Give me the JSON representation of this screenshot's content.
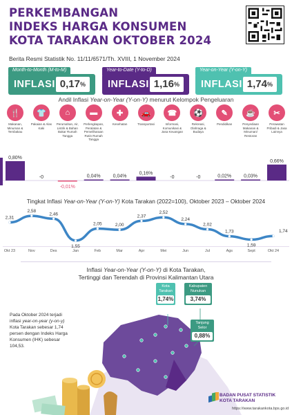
{
  "header": {
    "title_line1": "PERKEMBANGAN",
    "title_line2": "INDEKS HARGA KONSUMEN",
    "title_line3": "KOTA TARAKAN OKTOBER 2024",
    "subtitle": "Berita Resmi Statistik No. 11/11/6571/Th. XVIII, 1 November 2024"
  },
  "inflation_boxes": [
    {
      "label": "Month-to-Month (M-to-M)",
      "word": "INFLASI",
      "value": "0,17",
      "unit": "%",
      "color": "#3c9a82",
      "label_bg": "#3c9a82"
    },
    {
      "label": "Year-to-Date (Y-to-D)",
      "word": "INFLASI",
      "value": "1,16",
      "unit": "%",
      "color": "#5a2a86",
      "label_bg": "#5a2a86"
    },
    {
      "label": "Year-on-Year (Y-on-Y)",
      "word": "INFLASI",
      "value": "1,74",
      "unit": "%",
      "color": "#4fc1b0",
      "label_bg": "#4fc1b0"
    }
  ],
  "andil_title_prefix": "Andil Inflasi ",
  "andil_title_em": "Year-on-Year (Y-on-Y)",
  "andil_title_suffix": " menurut Kelompok Pengeluaran",
  "groups": [
    {
      "name": "Makanan, Minuman & Tembakau",
      "icon": "food-icon",
      "glyph": "🍴"
    },
    {
      "name": "Pakaian & Alas Kaki",
      "icon": "clothing-icon",
      "glyph": "👕"
    },
    {
      "name": "Perumahan, Air, Listrik & Bahan Bakar Rumah Tangga",
      "icon": "house-icon",
      "glyph": "⌂"
    },
    {
      "name": "Perlengkapan, Peralatan & Pemeliharaan Rutin Rumah Tangga",
      "icon": "sofa-icon",
      "glyph": "▬"
    },
    {
      "name": "Kesehatan",
      "icon": "health-icon",
      "glyph": "✚"
    },
    {
      "name": "Transportasi",
      "icon": "car-icon",
      "glyph": "🚗"
    },
    {
      "name": "Informasi, Komunikasi & Jasa Keuangan",
      "icon": "phone-icon",
      "glyph": "☎"
    },
    {
      "name": "Rekreasi, Olahraga & Budaya",
      "icon": "recreation-icon",
      "glyph": "⚽"
    },
    {
      "name": "Pendidikan",
      "icon": "education-icon",
      "glyph": "✎"
    },
    {
      "name": "Penyediaan Makanan & Minuman/ Restoran",
      "icon": "restaurant-icon",
      "glyph": "☕"
    },
    {
      "name": "Perawatan Pribadi & Jasa Lainnya",
      "icon": "personal-care-icon",
      "glyph": "✂"
    }
  ],
  "line_title_prefix": "Tingkat Inflasi ",
  "line_title_em": "Year-on-Year (Y-on-Y)",
  "line_title_suffix": " Kota Tarakan (2022=100), Oktober 2023 – Oktober 2024",
  "map_title_line1_prefix": "Inflasi ",
  "map_title_line1_em": "Year-on-Year (Y-on-Y)",
  "map_title_line1_suffix": " di Kota Tarakan,",
  "map_title_line2": "Tertinggi dan Terendah di Provinsi Kalimantan Utara",
  "note": {
    "p1": "Pada Oktober 2024 terjadi inflasi ",
    "em": "year-on-year (y-on-y)",
    "p2": " Kota Tarakan sebesar 1,74 persen dengan Indeks Harga Konsumen (IHK) sebesar 104,53."
  },
  "map_callouts": [
    {
      "name": "Kota Tarakan",
      "value": "1,74%",
      "color": "#4fc1b0"
    },
    {
      "name": "Kabupaten Nunukan",
      "value": "3,74%",
      "color": "#3c9a82"
    },
    {
      "name": "Tanjung Selor",
      "value": "0,88%",
      "color": "#3c9a82"
    }
  ],
  "footer": {
    "org_line1": "BADAN PUSAT STATISTIK",
    "org_line2": "KOTA TARAKAN",
    "url": "https://www.tarakankota.bps.go.id"
  },
  "colors": {
    "purple": "#5a2a86",
    "teal": "#4fc1b0",
    "green": "#3c9a82",
    "pink": "#e34f76",
    "lightpurple": "#cfc3e0"
  },
  "chart_data": [
    {
      "type": "bar",
      "title": "Andil Inflasi Year-on-Year (Y-on-Y) menurut Kelompok Pengeluaran",
      "categories": [
        "Makanan, Minuman & Tembakau",
        "Pakaian & Alas Kaki",
        "Perumahan, Air, Listrik & Bahan Bakar Rumah Tangga",
        "Perlengkapan, Peralatan & Pemeliharaan Rutin Rumah Tangga",
        "Kesehatan",
        "Transportasi",
        "Informasi, Komunikasi & Jasa Keuangan",
        "Rekreasi, Olahraga & Budaya",
        "Pendidikan",
        "Penyediaan Makanan & Minuman/ Restoran",
        "Perawatan Pribadi & Jasa Lainnya"
      ],
      "values": [
        0.8,
        0,
        -0.01,
        0.04,
        0.04,
        0.16,
        0,
        0,
        0.02,
        0.03,
        0.66
      ],
      "labels": [
        "0,80%",
        "-0",
        "-0,01%",
        "0,04%",
        "0,04%",
        "0,16%",
        "-0",
        "-0",
        "0,02%",
        "0,03%",
        "0,66%"
      ]
    },
    {
      "type": "line",
      "title": "Tingkat Inflasi Year-on-Year (Y-on-Y) Kota Tarakan (2022=100), Oktober 2023 – Oktober 2024",
      "categories": [
        "Okt 23",
        "Nov",
        "Des",
        "Jan",
        "Feb",
        "Mar",
        "Apr",
        "Mei",
        "Jun",
        "Jul",
        "Ags",
        "Sept",
        "Okt 24"
      ],
      "values": [
        2.31,
        2.58,
        2.46,
        1.55,
        2.05,
        2.0,
        2.37,
        2.52,
        2.24,
        2.02,
        1.73,
        1.59,
        1.74
      ],
      "labels": [
        "2,31",
        "2,58",
        "2,46",
        "1,55",
        "2,05",
        "2,00",
        "2,37",
        "2,52",
        "2,24",
        "2,02",
        "1,73",
        "1,59",
        "1,74"
      ]
    }
  ]
}
